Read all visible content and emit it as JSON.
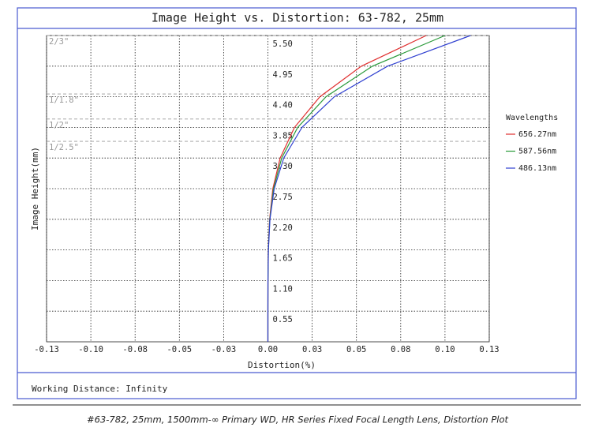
{
  "chart_data": {
    "type": "line",
    "title": "Image Height vs. Distortion: 63-782, 25mm",
    "x_label": "Distortion(%)",
    "y_label": "Image Height(mm)",
    "y": [
      0,
      0.55,
      1.1,
      1.65,
      2.2,
      2.75,
      3.3,
      3.85,
      4.4,
      4.95,
      5.5
    ],
    "series": [
      {
        "name": "656.27nm",
        "color": "#e03030",
        "x": [
          0,
          0,
          3e-05,
          0.0002,
          0.001,
          0.0029,
          0.0072,
          0.0156,
          0.0305,
          0.0549,
          0.093
        ]
      },
      {
        "name": "587.56nm",
        "color": "#2a9a3a",
        "x": [
          0,
          0,
          3e-05,
          0.00025,
          0.0011,
          0.0033,
          0.0081,
          0.0175,
          0.0341,
          0.0614,
          0.104
        ]
      },
      {
        "name": "486.13nm",
        "color": "#3040d0",
        "x": [
          0,
          0,
          4e-05,
          0.0003,
          0.0012,
          0.0037,
          0.0093,
          0.02,
          0.039,
          0.0703,
          0.119
        ]
      }
    ],
    "legend_title": "Wavelengths",
    "legend": "right",
    "grid": true,
    "xlim": [
      -0.13,
      0.13
    ],
    "xticks": [
      -0.13,
      {
        "value": -0.104,
        "label": "-0.10"
      },
      {
        "value": -0.078,
        "label": "-0.08"
      },
      {
        "value": -0.052,
        "label": "-0.05"
      },
      {
        "value": -0.026,
        "label": "-0.03"
      },
      {
        "value": 0,
        "label": "0.00"
      },
      {
        "value": 0.026,
        "label": "0.03"
      },
      {
        "value": 0.052,
        "label": "0.05"
      },
      {
        "value": 0.078,
        "label": "0.08"
      },
      {
        "value": 0.104,
        "label": "0.10"
      },
      0.13
    ],
    "ylim": [
      0,
      5.5
    ],
    "yticks": [
      0.55,
      {
        "value": 1.1,
        "label": "1.10"
      },
      1.65,
      {
        "value": 2.2,
        "label": "2.20"
      },
      2.75,
      {
        "value": 3.3,
        "label": "3.30"
      },
      3.85,
      {
        "value": 4.4,
        "label": "4.40"
      },
      4.95,
      {
        "value": 5.5,
        "label": "5.50"
      }
    ],
    "sensor_formats": [
      {
        "label": "2/3\"",
        "value": 5.5
      },
      {
        "label": "1/1.8\"",
        "value": 4.45
      },
      {
        "label": "1/2\"",
        "value": 4.0
      },
      {
        "label": "1/2.5\"",
        "value": 3.6
      }
    ],
    "working_distance": "Working Distance: Infinity",
    "caption": "#63-782, 25mm, 1500mm-∞ Primary WD, HR Series Fixed Focal Length Lens, Distortion Plot"
  }
}
